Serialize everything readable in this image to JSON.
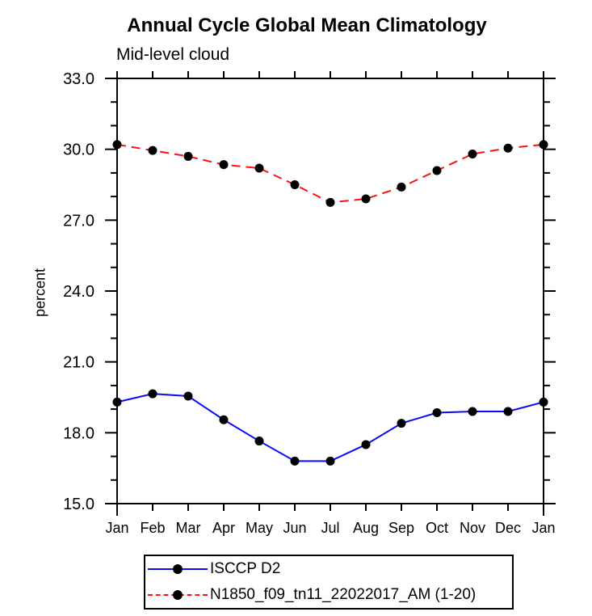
{
  "page": {
    "title": "Annual Cycle Global Mean Climatology",
    "subtitle": "Mid-level cloud"
  },
  "axes": {
    "ylabel": "percent"
  },
  "legend": {
    "entries": [
      {
        "label": "ISCCP D2",
        "color": "#0a0aff",
        "style": "solid"
      },
      {
        "label": "N1850_f09_tn11_22022017_AM (1-20)",
        "color": "#ff0f0f",
        "style": "dashed"
      }
    ]
  },
  "chart_data": {
    "type": "line",
    "title": "Annual Cycle Global Mean Climatology",
    "subtitle": "Mid-level cloud",
    "xlabel": "",
    "ylabel": "percent",
    "categories": [
      "Jan",
      "Feb",
      "Mar",
      "Apr",
      "May",
      "Jun",
      "Jul",
      "Aug",
      "Sep",
      "Oct",
      "Nov",
      "Dec",
      "Jan"
    ],
    "ylim": [
      15.0,
      33.0
    ],
    "yticks": [
      15.0,
      18.0,
      21.0,
      24.0,
      27.0,
      30.0,
      33.0
    ],
    "minor_tick_interval": 1.0,
    "grid": false,
    "legend_position": "bottom",
    "marker": {
      "shape": "circle",
      "color": "#000000",
      "radius": 5.5
    },
    "series": [
      {
        "name": "ISCCP D2",
        "color": "#0a0aff",
        "line_style": "solid",
        "values": [
          19.3,
          19.65,
          19.55,
          18.55,
          17.65,
          16.8,
          16.8,
          17.5,
          18.4,
          18.85,
          18.9,
          18.9,
          19.3
        ]
      },
      {
        "name": "N1850_f09_tn11_22022017_AM (1-20)",
        "color": "#ff0f0f",
        "line_style": "dashed",
        "values": [
          30.2,
          29.95,
          29.7,
          29.35,
          29.2,
          28.5,
          27.75,
          27.9,
          28.4,
          29.1,
          29.8,
          30.05,
          30.2
        ]
      }
    ]
  }
}
